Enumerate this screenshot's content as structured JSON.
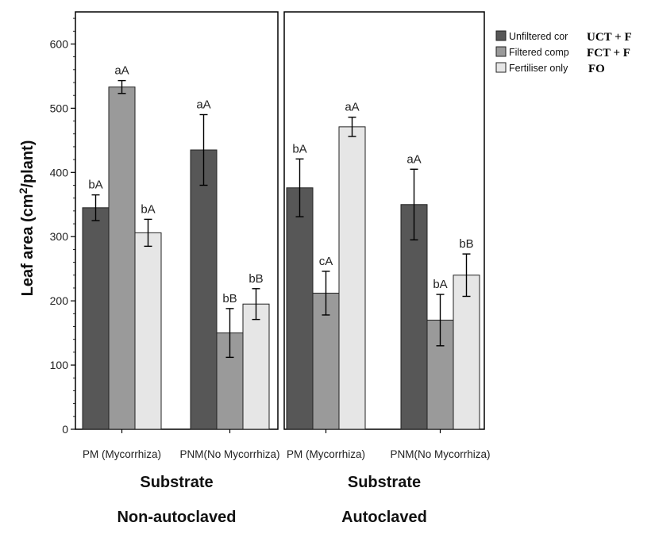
{
  "chart_data": {
    "type": "bar",
    "ylabel": "Leaf area (cm2/plant)",
    "ylabel_parts": {
      "main": "Leaf area (cm",
      "sup": "2",
      "tail": "/plant)"
    },
    "ylim": [
      0,
      650
    ],
    "yticks": [
      0,
      100,
      200,
      300,
      400,
      500,
      600
    ],
    "grid": false,
    "legend_position": "top-right",
    "legend": [
      {
        "label": "Unfiltered cor",
        "overlay": "UCT + F",
        "color": "#575757"
      },
      {
        "label": "Filtered comp",
        "overlay": "FCT + F",
        "color": "#9a9a9a"
      },
      {
        "label": "Fertiliser only",
        "overlay": "FO",
        "color": "#e6e6e6"
      }
    ],
    "panels": [
      {
        "xlabel": "Substrate",
        "group_title": "Non-autoclaved",
        "categories": [
          "PM (Mycorrhiza)",
          "PNM(No Mycorrhiza)"
        ],
        "series": [
          {
            "values": [
              345,
              435
            ],
            "errors": [
              20,
              55
            ],
            "labels": [
              "bA",
              "aA"
            ]
          },
          {
            "values": [
              533,
              150
            ],
            "errors": [
              10,
              38
            ],
            "labels": [
              "aA",
              "bB"
            ]
          },
          {
            "values": [
              306,
              195
            ],
            "errors": [
              21,
              24
            ],
            "labels": [
              "bA",
              "bB"
            ]
          }
        ]
      },
      {
        "xlabel": "Substrate",
        "group_title": "Autoclaved",
        "categories": [
          "PM (Mycorrhiza)",
          "PNM(No Mycorrhiza)"
        ],
        "series": [
          {
            "values": [
              376,
              350
            ],
            "errors": [
              45,
              55
            ],
            "labels": [
              "bA",
              "aA"
            ]
          },
          {
            "values": [
              212,
              170
            ],
            "errors": [
              34,
              40
            ],
            "labels": [
              "cA",
              "bA"
            ]
          },
          {
            "values": [
              471,
              240
            ],
            "errors": [
              15,
              33
            ],
            "labels": [
              "aA",
              "bB"
            ]
          }
        ]
      }
    ]
  }
}
